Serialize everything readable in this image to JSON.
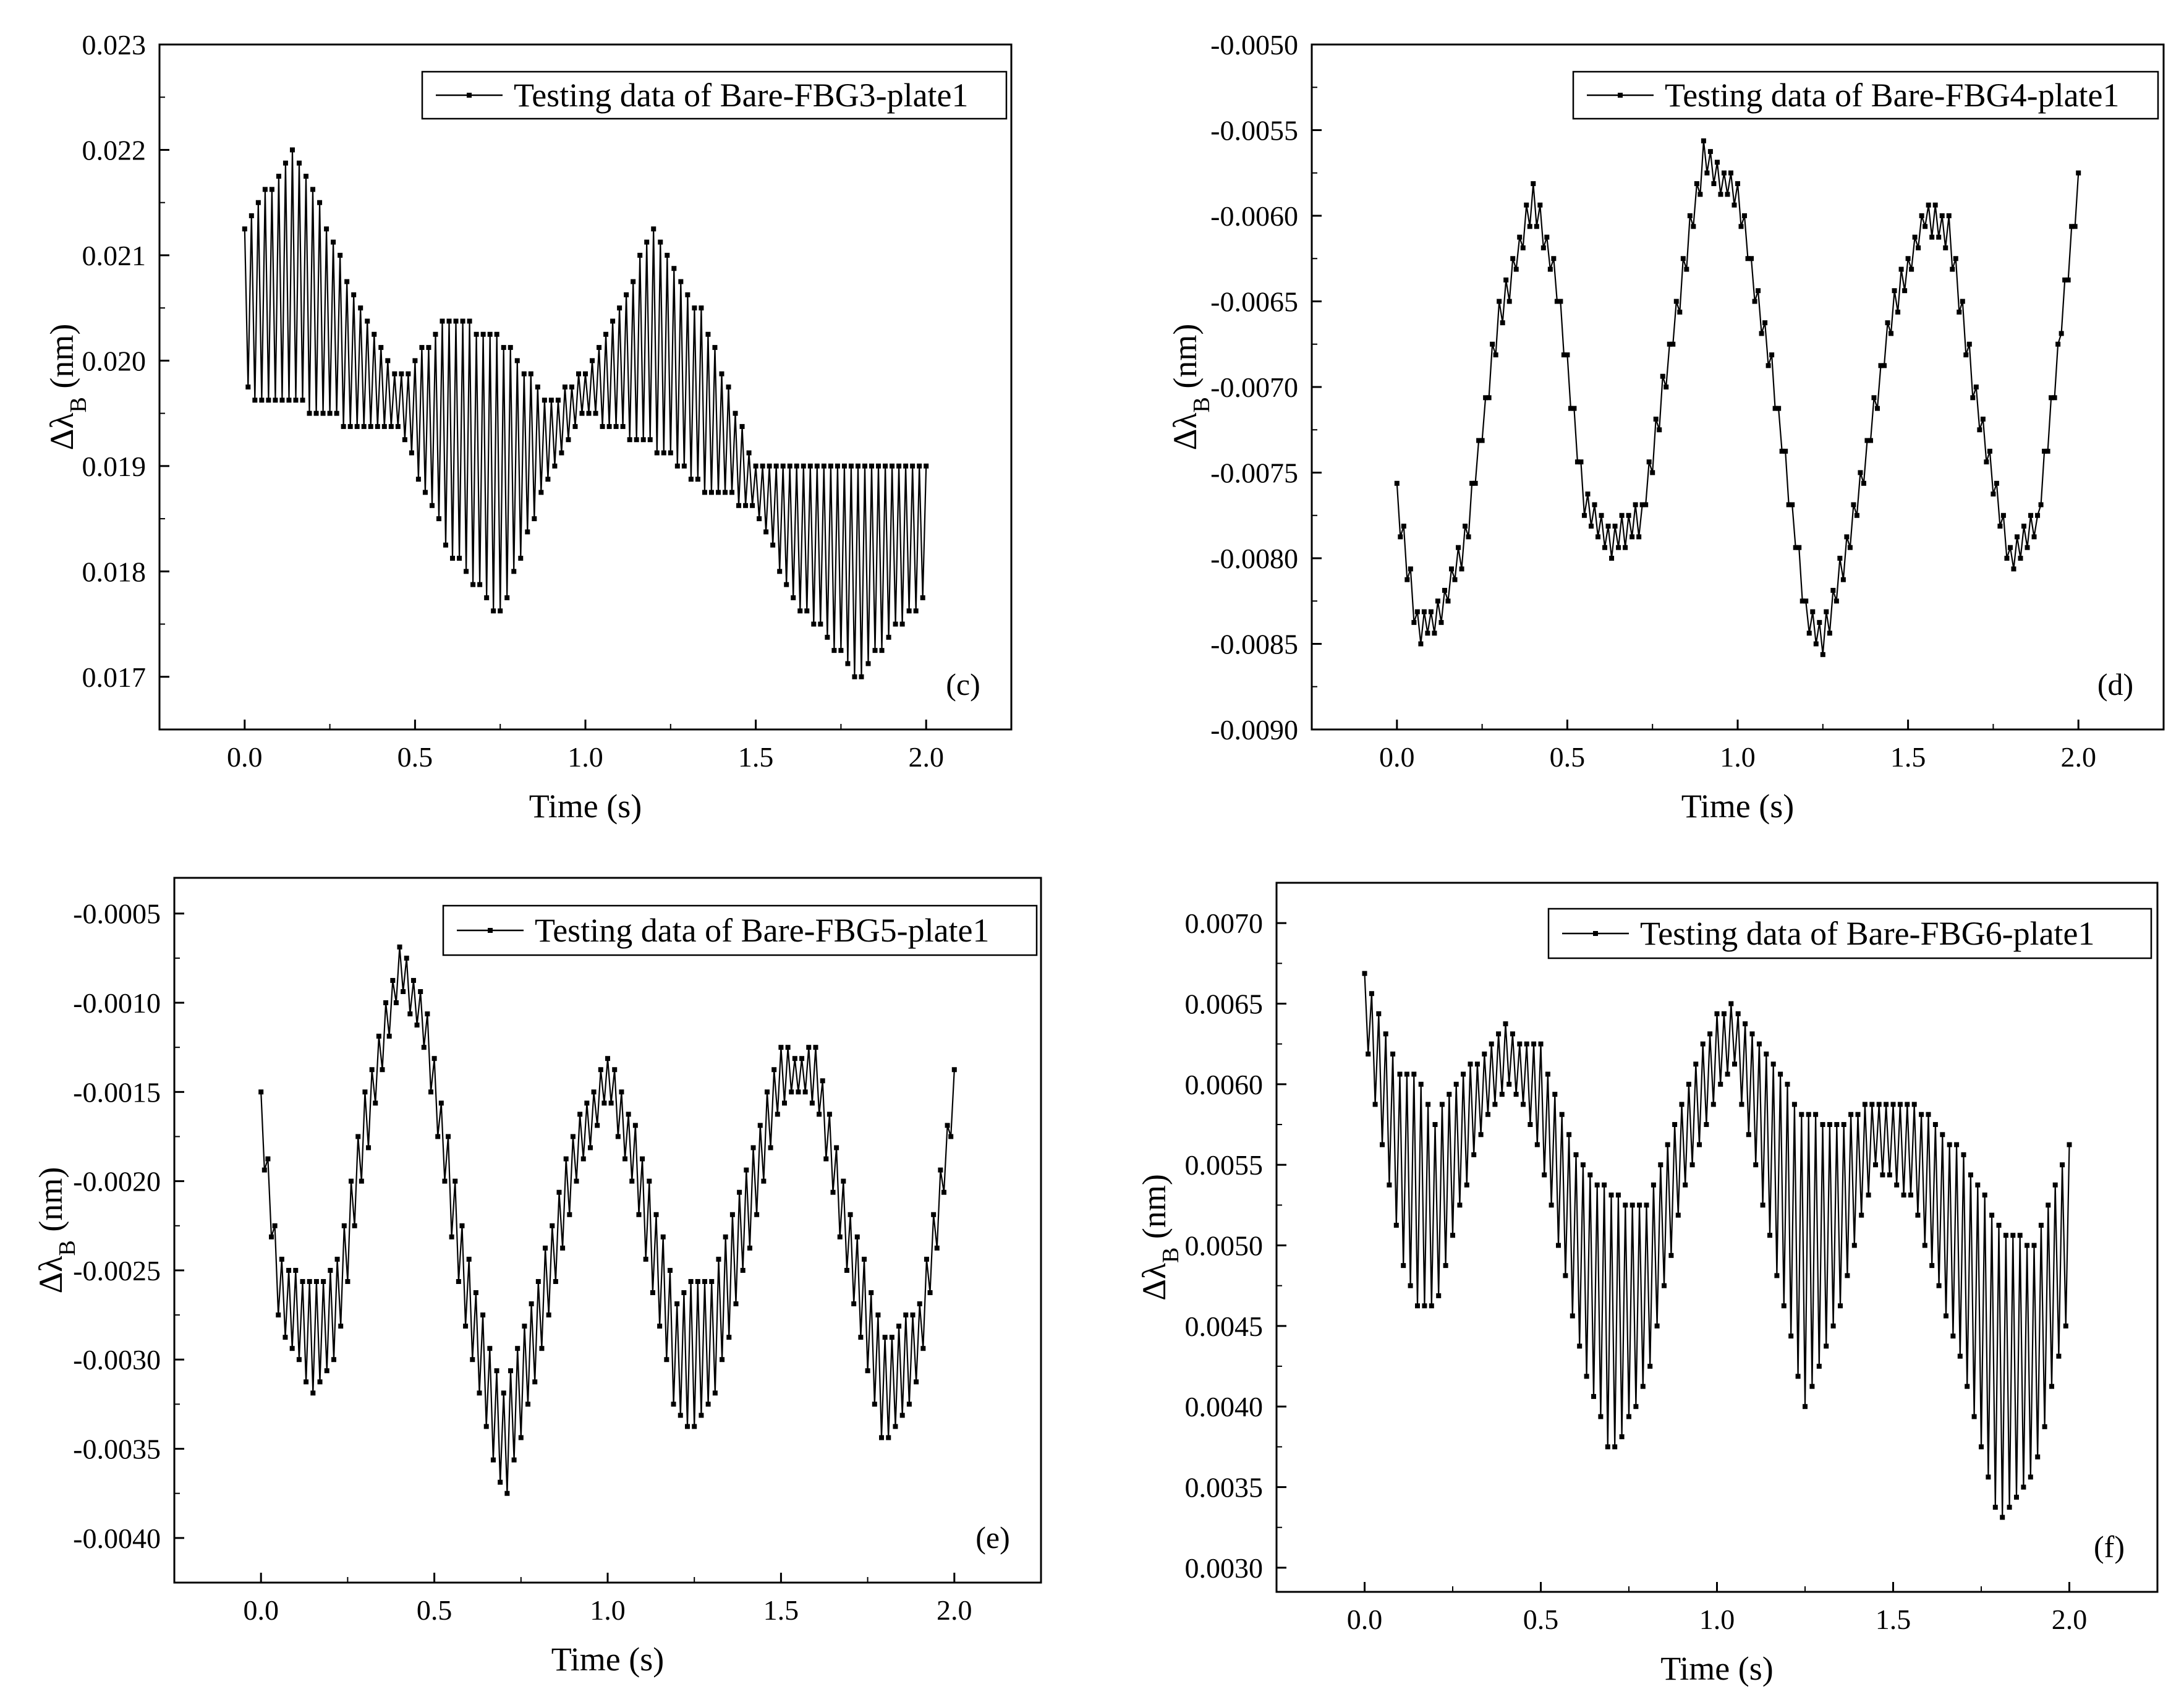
{
  "chart_data": [
    {
      "type": "line",
      "panel_label": "(c)",
      "xlabel": "Time (s)",
      "ylabel": "Δλ",
      "ylabel_sub": "B",
      "ylabel_unit": " (nm)",
      "xlim": [
        -0.25,
        2.25
      ],
      "ylim": [
        0.0165,
        0.023
      ],
      "xticks": [
        0.0,
        0.5,
        1.0,
        1.5,
        2.0
      ],
      "xtick_labels": [
        "0.0",
        "0.5",
        "1.0",
        "1.5",
        "2.0"
      ],
      "yticks": [
        0.017,
        0.018,
        0.019,
        0.02,
        0.021,
        0.022,
        0.023
      ],
      "ytick_labels": [
        "0.017",
        "0.018",
        "0.019",
        "0.020",
        "0.021",
        "0.022",
        "0.023"
      ],
      "legend": "Testing data of Bare-FBG3-plate1",
      "legend_position": "top-right",
      "duration": 2.0,
      "sample_interval": 0.01,
      "envelope_center": [
        [
          0.0,
          0.0205
        ],
        [
          0.15,
          0.0208
        ],
        [
          0.3,
          0.0201
        ],
        [
          0.45,
          0.0196
        ],
        [
          0.6,
          0.0193
        ],
        [
          0.75,
          0.0189
        ],
        [
          0.9,
          0.0193
        ],
        [
          1.0,
          0.0197
        ],
        [
          1.2,
          0.0202
        ],
        [
          1.35,
          0.0196
        ],
        [
          1.5,
          0.0188
        ],
        [
          1.6,
          0.0184
        ],
        [
          1.8,
          0.018
        ],
        [
          2.0,
          0.0184
        ]
      ],
      "envelope_half_range": [
        [
          0.0,
          0.0008
        ],
        [
          0.15,
          0.0012
        ],
        [
          0.3,
          0.0007
        ],
        [
          0.45,
          0.0002
        ],
        [
          0.6,
          0.0011
        ],
        [
          0.75,
          0.0013
        ],
        [
          0.9,
          0.0003
        ],
        [
          1.0,
          0.0002
        ],
        [
          1.2,
          0.001
        ],
        [
          1.35,
          0.0008
        ],
        [
          1.5,
          0.0002
        ],
        [
          1.6,
          0.0006
        ],
        [
          1.8,
          0.001
        ],
        [
          2.0,
          0.0006
        ]
      ]
    },
    {
      "type": "line",
      "panel_label": "(d)",
      "xlabel": "Time (s)",
      "ylabel": "Δλ",
      "ylabel_sub": "B",
      "ylabel_unit": " (nm)",
      "xlim": [
        -0.25,
        2.25
      ],
      "ylim": [
        -0.009,
        -0.005
      ],
      "xticks": [
        0.0,
        0.5,
        1.0,
        1.5,
        2.0
      ],
      "xtick_labels": [
        "0.0",
        "0.5",
        "1.0",
        "1.5",
        "2.0"
      ],
      "yticks": [
        -0.009,
        -0.0085,
        -0.008,
        -0.0075,
        -0.007,
        -0.0065,
        -0.006,
        -0.0055,
        -0.005
      ],
      "ytick_labels": [
        "-0.0090",
        "-0.0085",
        "-0.0080",
        "-0.0075",
        "-0.0070",
        "-0.0065",
        "-0.0060",
        "-0.0055",
        "-0.0050"
      ],
      "legend": "Testing data of Bare-FBG4-plate1",
      "legend_position": "top-right",
      "duration": 2.0,
      "sample_interval": 0.01,
      "envelope_center": [
        [
          0.0,
          -0.00765
        ],
        [
          0.06,
          -0.0084
        ],
        [
          0.12,
          -0.00835
        ],
        [
          0.2,
          -0.0079
        ],
        [
          0.3,
          -0.0066
        ],
        [
          0.4,
          -0.0059
        ],
        [
          0.47,
          -0.0064
        ],
        [
          0.55,
          -0.0077
        ],
        [
          0.63,
          -0.0079
        ],
        [
          0.72,
          -0.00775
        ],
        [
          0.8,
          -0.0068
        ],
        [
          0.9,
          -0.00565
        ],
        [
          1.0,
          -0.0059
        ],
        [
          1.1,
          -0.0069
        ],
        [
          1.2,
          -0.0083
        ],
        [
          1.25,
          -0.0085
        ],
        [
          1.35,
          -0.0077
        ],
        [
          1.45,
          -0.0066
        ],
        [
          1.55,
          -0.006
        ],
        [
          1.62,
          -0.0061
        ],
        [
          1.7,
          -0.0071
        ],
        [
          1.8,
          -0.008
        ],
        [
          1.88,
          -0.0078
        ],
        [
          2.0,
          -0.0058
        ]
      ],
      "envelope_half_range": [
        [
          0.0,
          8e-05
        ],
        [
          1.0,
          8e-05
        ],
        [
          2.0,
          8e-05
        ]
      ]
    },
    {
      "type": "line",
      "panel_label": "(e)",
      "xlabel": "Time (s)",
      "ylabel": "Δλ",
      "ylabel_sub": "B",
      "ylabel_unit": " (nm)",
      "xlim": [
        -0.25,
        2.25
      ],
      "ylim": [
        -0.00425,
        -0.0003
      ],
      "xticks": [
        0.0,
        0.5,
        1.0,
        1.5,
        2.0
      ],
      "xtick_labels": [
        "0.0",
        "0.5",
        "1.0",
        "1.5",
        "2.0"
      ],
      "yticks": [
        -0.004,
        -0.0035,
        -0.003,
        -0.0025,
        -0.002,
        -0.0015,
        -0.001,
        -0.0005
      ],
      "ytick_labels": [
        "-0.0040",
        "-0.0035",
        "-0.0030",
        "-0.0025",
        "-0.0020",
        "-0.0015",
        "-0.0010",
        "-0.0005"
      ],
      "legend": "Testing data of Bare-FBG5-plate1",
      "legend_position": "top-right",
      "duration": 2.0,
      "sample_interval": 0.01,
      "envelope_center": [
        [
          0.0,
          -0.0016
        ],
        [
          0.05,
          -0.0026
        ],
        [
          0.15,
          -0.0029
        ],
        [
          0.22,
          -0.0027
        ],
        [
          0.3,
          -0.0017
        ],
        [
          0.4,
          -0.0008
        ],
        [
          0.47,
          -0.0011
        ],
        [
          0.6,
          -0.0027
        ],
        [
          0.7,
          -0.0035
        ],
        [
          0.8,
          -0.0028
        ],
        [
          0.9,
          -0.0019
        ],
        [
          1.0,
          -0.0014
        ],
        [
          1.08,
          -0.0019
        ],
        [
          1.2,
          -0.003
        ],
        [
          1.3,
          -0.0029
        ],
        [
          1.4,
          -0.0022
        ],
        [
          1.5,
          -0.0014
        ],
        [
          1.6,
          -0.0014
        ],
        [
          1.7,
          -0.0024
        ],
        [
          1.8,
          -0.0032
        ],
        [
          1.9,
          -0.0029
        ],
        [
          2.0,
          -0.0015
        ]
      ],
      "envelope_half_range": [
        [
          0.0,
          0.0001
        ],
        [
          0.15,
          0.0003
        ],
        [
          0.4,
          0.0001
        ],
        [
          0.7,
          0.0003
        ],
        [
          1.0,
          0.0001
        ],
        [
          1.25,
          0.0004
        ],
        [
          1.55,
          0.0001
        ],
        [
          1.8,
          0.0003
        ],
        [
          2.0,
          0.0001
        ]
      ]
    },
    {
      "type": "line",
      "panel_label": "(f)",
      "xlabel": "Time (s)",
      "ylabel": "Δλ",
      "ylabel_sub": "B",
      "ylabel_unit": " (nm)",
      "xlim": [
        -0.25,
        2.25
      ],
      "ylim": [
        0.00285,
        0.00725
      ],
      "xticks": [
        0.0,
        0.5,
        1.0,
        1.5,
        2.0
      ],
      "xtick_labels": [
        "0.0",
        "0.5",
        "1.0",
        "1.5",
        "2.0"
      ],
      "yticks": [
        0.003,
        0.0035,
        0.004,
        0.0045,
        0.005,
        0.0055,
        0.006,
        0.0065,
        0.007
      ],
      "ytick_labels": [
        "0.0030",
        "0.0035",
        "0.0040",
        "0.0045",
        "0.0050",
        "0.0055",
        "0.0060",
        "0.0065",
        "0.0070"
      ],
      "legend": "Testing data of Bare-FBG6-plate1",
      "legend_position": "top-right",
      "duration": 2.0,
      "sample_interval": 0.01,
      "envelope_center": [
        [
          0.0,
          0.0065
        ],
        [
          0.1,
          0.0055
        ],
        [
          0.2,
          0.0052
        ],
        [
          0.3,
          0.0058
        ],
        [
          0.4,
          0.0062
        ],
        [
          0.5,
          0.0059
        ],
        [
          0.6,
          0.005
        ],
        [
          0.7,
          0.0045
        ],
        [
          0.8,
          0.0047
        ],
        [
          0.9,
          0.0056
        ],
        [
          1.0,
          0.0062
        ],
        [
          1.05,
          0.0063
        ],
        [
          1.15,
          0.0056
        ],
        [
          1.25,
          0.0049
        ],
        [
          1.35,
          0.0052
        ],
        [
          1.45,
          0.0057
        ],
        [
          1.55,
          0.0056
        ],
        [
          1.7,
          0.0049
        ],
        [
          1.8,
          0.0042
        ],
        [
          1.9,
          0.0043
        ],
        [
          2.0,
          0.0051
        ]
      ],
      "envelope_half_range": [
        [
          0.0,
          0.0002
        ],
        [
          0.15,
          0.0007
        ],
        [
          0.35,
          0.0002
        ],
        [
          0.45,
          0.0002
        ],
        [
          0.7,
          0.0008
        ],
        [
          0.9,
          0.0003
        ],
        [
          1.05,
          0.0002
        ],
        [
          1.25,
          0.0009
        ],
        [
          1.45,
          0.0002
        ],
        [
          1.55,
          0.0003
        ],
        [
          1.8,
          0.0009
        ],
        [
          2.0,
          0.0005
        ]
      ]
    }
  ]
}
